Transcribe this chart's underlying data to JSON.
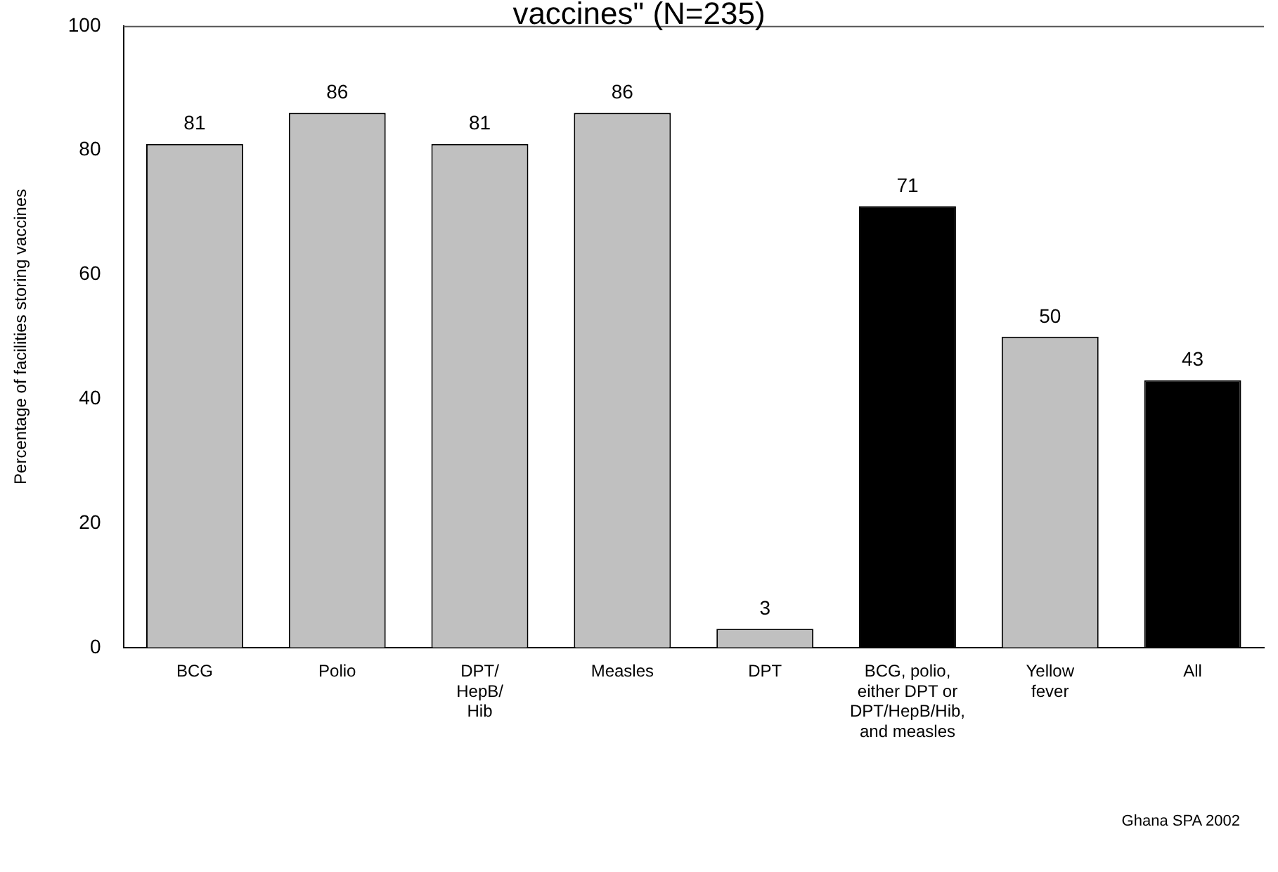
{
  "chart_data": {
    "type": "bar",
    "title": "vaccines\" (N=235)",
    "ylabel": "Percentage of facilities storing vaccines",
    "categories": [
      "BCG",
      "Polio",
      "DPT/\nHepB/\nHib",
      "Measles",
      "DPT",
      "BCG, polio,\neither DPT or\nDPT/HepB/Hib,\nand measles",
      "Yellow\nfever",
      "All"
    ],
    "values": [
      81,
      86,
      81,
      86,
      3,
      71,
      50,
      43
    ],
    "colors": [
      "#c0c0c0",
      "#c0c0c0",
      "#c0c0c0",
      "#c0c0c0",
      "#c0c0c0",
      "#000000",
      "#c0c0c0",
      "#000000"
    ],
    "ylim": [
      0,
      100
    ],
    "yticks": [
      0,
      20,
      40,
      60,
      80,
      100
    ],
    "grid": false,
    "legend": false,
    "data_labels": true,
    "annotations": [
      "Ghana SPA 2002"
    ]
  }
}
